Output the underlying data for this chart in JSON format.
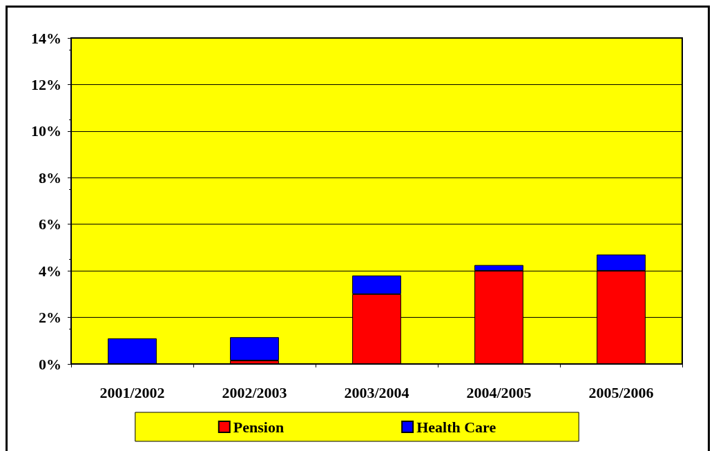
{
  "chart_data": {
    "type": "bar",
    "stacked": true,
    "categories": [
      "2001/2002",
      "2002/2003",
      "2003/2004",
      "2004/2005",
      "2005/2006"
    ],
    "series": [
      {
        "name": "Pension",
        "color": "#ff0000",
        "values": [
          0,
          0.15,
          3.0,
          4.0,
          4.0
        ]
      },
      {
        "name": "Health Care",
        "color": "#0000ff",
        "values": [
          1.1,
          1.0,
          0.8,
          0.25,
          0.7
        ]
      }
    ],
    "ylim": [
      0,
      14
    ],
    "yticks": [
      {
        "value": 0,
        "label": "0%"
      },
      {
        "value": 2,
        "label": "2%"
      },
      {
        "value": 4,
        "label": "4%"
      },
      {
        "value": 6,
        "label": "6%"
      },
      {
        "value": 8,
        "label": "8%"
      },
      {
        "value": 10,
        "label": "10%"
      },
      {
        "value": 12,
        "label": "12%"
      },
      {
        "value": 14,
        "label": "14%"
      }
    ],
    "grid": "y",
    "legend": "bottom"
  }
}
